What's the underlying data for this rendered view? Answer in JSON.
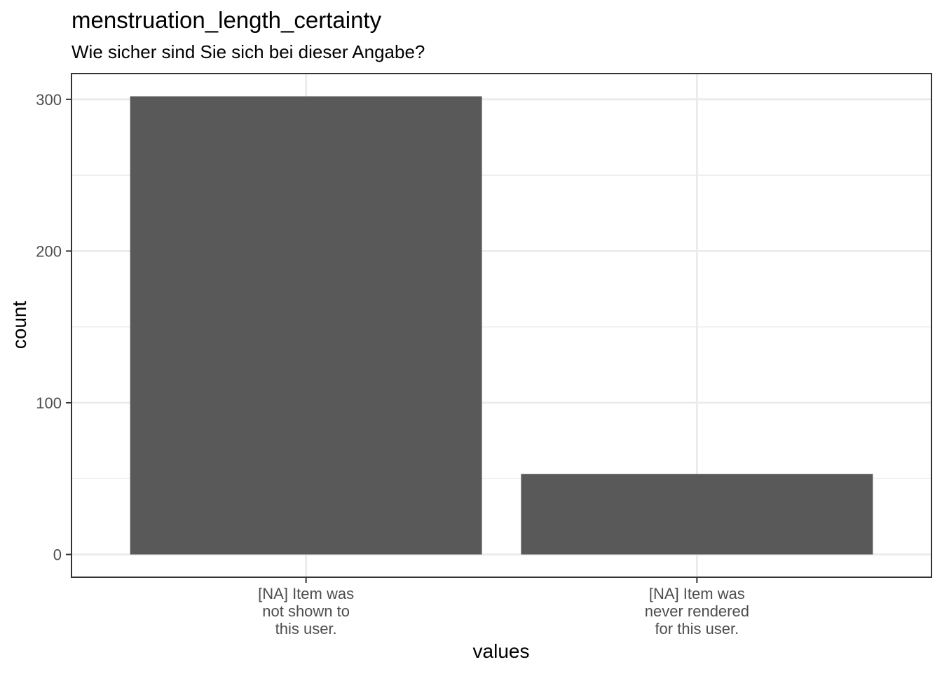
{
  "chart_data": {
    "type": "bar",
    "title": "menstruation_length_certainty",
    "subtitle": "Wie sicher sind Sie sich bei dieser Angabe?",
    "xlabel": "values",
    "ylabel": "count",
    "categories": [
      "[NA] Item was\nnot shown to\nthis user.",
      "[NA] Item was\nnever rendered\nfor this user."
    ],
    "values": [
      302,
      53
    ],
    "ylim": [
      -15,
      317
    ],
    "y_ticks": [
      0,
      100,
      200,
      300
    ],
    "y_minor_ticks": [
      50,
      150,
      250
    ],
    "bar_color": "#595959",
    "grid": true,
    "legend": "none"
  }
}
